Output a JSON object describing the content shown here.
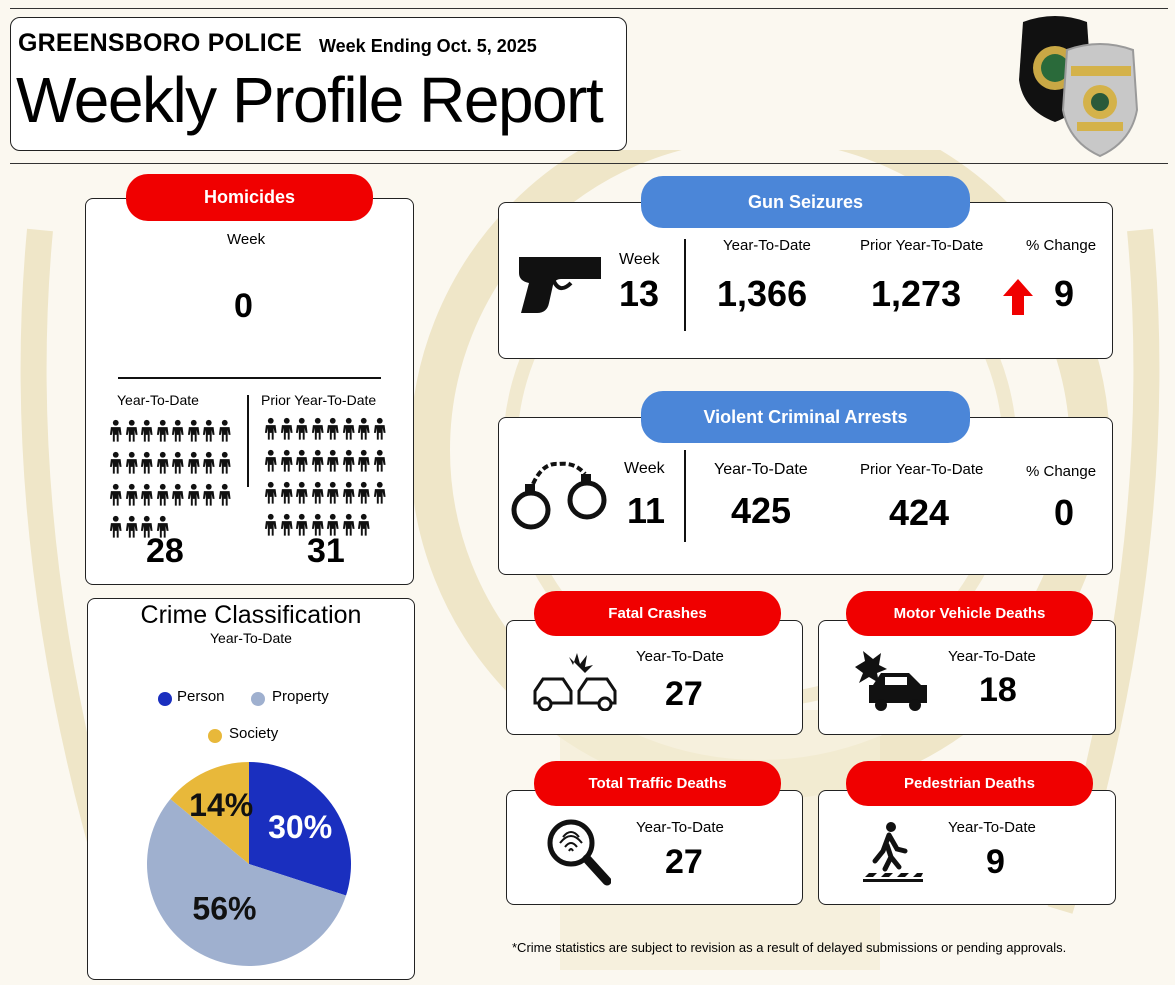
{
  "header": {
    "agency": "GREENSBORO POLICE",
    "week_ending": "Week Ending Oct. 5,  2025",
    "title": "Weekly Profile Report"
  },
  "homicides": {
    "title": "Homicides",
    "week_label": "Week",
    "week_value": "0",
    "ytd_label": "Year-To-Date",
    "ytd_value": "28",
    "prior_label": "Prior Year-To-Date",
    "prior_value": "31"
  },
  "gun_seizures": {
    "title": "Gun Seizures",
    "week_label": "Week",
    "week_value": "13",
    "ytd_label": "Year-To-Date",
    "ytd_value": "1,366",
    "prior_label": "Prior Year-To-Date",
    "prior_value": "1,273",
    "change_label": "% Change",
    "change_value": "9",
    "change_direction": "up",
    "icon": "handgun-icon"
  },
  "violent_arrests": {
    "title": "Violent Criminal Arrests",
    "week_label": "Week",
    "week_value": "11",
    "ytd_label": "Year-To-Date",
    "ytd_value": "425",
    "prior_label": "Prior Year-To-Date",
    "prior_value": "424",
    "change_label": "% Change",
    "change_value": "0",
    "icon": "handcuffs-icon"
  },
  "fatal_crashes": {
    "title": "Fatal Crashes",
    "ytd_label": "Year-To-Date",
    "ytd_value": "27",
    "icon": "car-crash-icon"
  },
  "motor_vehicle_deaths": {
    "title": "Motor Vehicle Deaths",
    "ytd_label": "Year-To-Date",
    "ytd_value": "18",
    "icon": "car-impact-icon"
  },
  "total_traffic_deaths": {
    "title": "Total Traffic Deaths",
    "ytd_label": "Year-To-Date",
    "ytd_value": "27",
    "icon": "fingerprint-magnifier-icon"
  },
  "pedestrian_deaths": {
    "title": "Pedestrian Deaths",
    "ytd_label": "Year-To-Date",
    "ytd_value": "9",
    "icon": "pedestrian-crosswalk-icon"
  },
  "colors": {
    "red": "#f00000",
    "blue": "#4b86d8",
    "person": "#1a2fbf",
    "property": "#9fb0cf",
    "society": "#e8b83a"
  },
  "chart_data": {
    "type": "pie",
    "title": "Crime Classification",
    "subtitle": "Year-To-Date",
    "legend_position": "top",
    "categories": [
      "Person",
      "Property",
      "Society"
    ],
    "values": [
      30,
      56,
      14
    ],
    "labels": [
      "30%",
      "56%",
      "14%"
    ],
    "colors": [
      "#1a2fbf",
      "#9fb0cf",
      "#e8b83a"
    ]
  },
  "footnote": "*Crime statistics are subject to revision as a result of delayed submissions or pending approvals."
}
